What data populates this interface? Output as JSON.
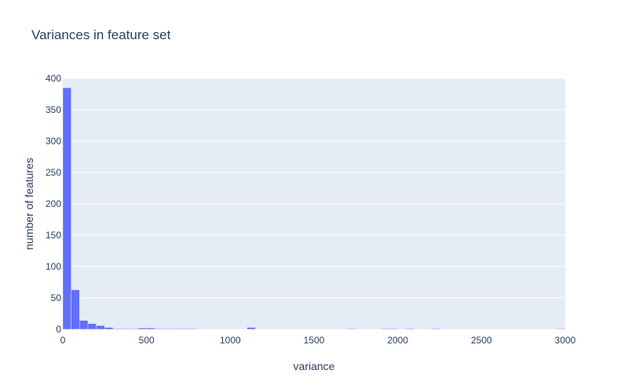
{
  "chart_data": {
    "type": "bar",
    "title": "Variances in feature set",
    "xlabel": "variance",
    "ylabel": "number of features",
    "xlim": [
      0,
      3000
    ],
    "ylim": [
      0,
      400
    ],
    "xticks": [
      0,
      500,
      1000,
      1500,
      2000,
      2500,
      3000
    ],
    "xtick_labels": [
      "0",
      "500",
      "1000",
      "1500",
      "2000",
      "2500",
      "3000"
    ],
    "yticks": [
      0,
      50,
      100,
      150,
      200,
      250,
      300,
      350,
      400
    ],
    "ytick_labels": [
      "0",
      "50",
      "100",
      "150",
      "200",
      "250",
      "300",
      "350",
      "400"
    ],
    "bin_width": 50,
    "bins": [
      {
        "x0": 0,
        "count": 385
      },
      {
        "x0": 50,
        "count": 63
      },
      {
        "x0": 100,
        "count": 14
      },
      {
        "x0": 150,
        "count": 9
      },
      {
        "x0": 200,
        "count": 6
      },
      {
        "x0": 250,
        "count": 3
      },
      {
        "x0": 300,
        "count": 1
      },
      {
        "x0": 350,
        "count": 1
      },
      {
        "x0": 400,
        "count": 1
      },
      {
        "x0": 450,
        "count": 2
      },
      {
        "x0": 500,
        "count": 2
      },
      {
        "x0": 550,
        "count": 1
      },
      {
        "x0": 600,
        "count": 1
      },
      {
        "x0": 650,
        "count": 1
      },
      {
        "x0": 700,
        "count": 1
      },
      {
        "x0": 750,
        "count": 1
      },
      {
        "x0": 1100,
        "count": 3
      },
      {
        "x0": 1700,
        "count": 1
      },
      {
        "x0": 1900,
        "count": 1
      },
      {
        "x0": 1950,
        "count": 1
      },
      {
        "x0": 2050,
        "count": 1
      },
      {
        "x0": 2200,
        "count": 1
      },
      {
        "x0": 2950,
        "count": 1
      }
    ],
    "grid": true,
    "colors": {
      "bar": "#636efa",
      "plot_bg": "#e5ecf6",
      "grid": "#ffffff",
      "text": "#2a3f5f"
    }
  }
}
